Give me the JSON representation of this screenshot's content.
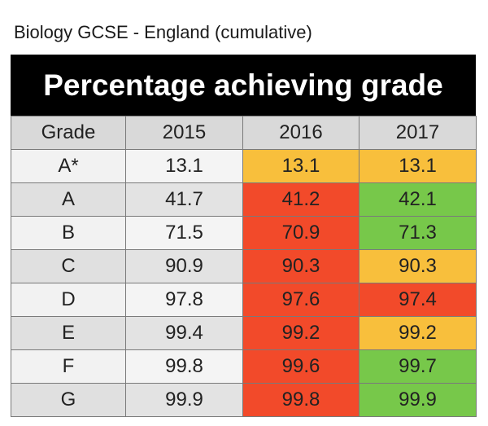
{
  "caption": "Biology GCSE - England (cumulative)",
  "chart_data": {
    "type": "table",
    "title": "Percentage achieving grade",
    "columns": [
      "Grade",
      "2015",
      "2016",
      "2017"
    ],
    "rows": [
      {
        "grade": "A*",
        "values": [
          "13.1",
          "13.1",
          "13.1"
        ],
        "status": [
          "none",
          "amber",
          "amber"
        ]
      },
      {
        "grade": "A",
        "values": [
          "41.7",
          "41.2",
          "42.1"
        ],
        "status": [
          "none",
          "red",
          "green"
        ]
      },
      {
        "grade": "B",
        "values": [
          "71.5",
          "70.9",
          "71.3"
        ],
        "status": [
          "none",
          "red",
          "green"
        ]
      },
      {
        "grade": "C",
        "values": [
          "90.9",
          "90.3",
          "90.3"
        ],
        "status": [
          "none",
          "red",
          "amber"
        ]
      },
      {
        "grade": "D",
        "values": [
          "97.8",
          "97.6",
          "97.4"
        ],
        "status": [
          "none",
          "red",
          "red"
        ]
      },
      {
        "grade": "E",
        "values": [
          "99.4",
          "99.2",
          "99.2"
        ],
        "status": [
          "none",
          "red",
          "amber"
        ]
      },
      {
        "grade": "F",
        "values": [
          "99.8",
          "99.6",
          "99.7"
        ],
        "status": [
          "none",
          "red",
          "green"
        ]
      },
      {
        "grade": "G",
        "values": [
          "99.9",
          "99.8",
          "99.9"
        ],
        "status": [
          "none",
          "red",
          "green"
        ]
      }
    ],
    "colors": {
      "red": "#f24a2a",
      "amber": "#f8bf3c",
      "green": "#77c84a",
      "header": "#000000"
    }
  }
}
